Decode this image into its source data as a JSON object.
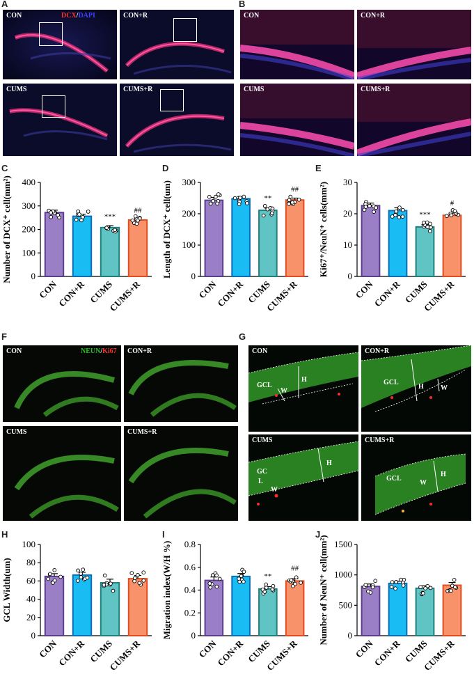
{
  "panel_letters": {
    "A": "A",
    "B": "B",
    "C": "C",
    "D": "D",
    "E": "E",
    "F": "F",
    "G": "G",
    "H": "H",
    "I": "I",
    "J": "J"
  },
  "groups": [
    "CON",
    "CON+R",
    "CUMS",
    "CUMS+R"
  ],
  "colors": {
    "CON": "#9b7fc6",
    "CON+R": "#19bdf4",
    "CUMS": "#5fc4c3",
    "CUMS+R": "#f8926a",
    "border_CON": "#5b3d8c",
    "border_CON+R": "#0a6fb5",
    "border_CUMS": "#20807c",
    "border_CUMS+R": "#e24c1e"
  },
  "legend_A": {
    "stain1": "DCX",
    "sep": "/",
    "stain2": "DAPI"
  },
  "legend_F": {
    "stain1": "NEUN",
    "sep": "/",
    "stain2": "Ki67"
  },
  "micro_labels": {
    "A": [
      "CON",
      "CON+R",
      "CUMS",
      "CUMS+R"
    ],
    "B": [
      "CON",
      "CON+R",
      "CUMS",
      "CUMS+R"
    ],
    "F": [
      "CON",
      "CON+R",
      "CUMS",
      "CUMS+R"
    ],
    "G": [
      "CON",
      "CON+R",
      "CUMS",
      "CUMS+R"
    ]
  },
  "g_annotations": {
    "gcl": "GCL",
    "gcl_split_1": "GC",
    "gcl_split_2": "L",
    "w": "W",
    "h": "H"
  },
  "chart_data": [
    {
      "id": "C",
      "type": "bar",
      "ylabel": "Number of DCX⁺ cell(mm²)",
      "ylim": [
        0,
        400
      ],
      "yticks": [
        0,
        100,
        200,
        300,
        400
      ],
      "categories": [
        "CON",
        "CON+R",
        "CUMS",
        "CUMS+R"
      ],
      "values": [
        272,
        256,
        208,
        240
      ],
      "errors": [
        10,
        9,
        8,
        7
      ],
      "significance": [
        "",
        "",
        "***",
        "##"
      ]
    },
    {
      "id": "D",
      "type": "bar",
      "ylabel": "Length of DCX⁺ cell(um)",
      "ylim": [
        0,
        300
      ],
      "yticks": [
        0,
        100,
        200,
        300
      ],
      "categories": [
        "CON",
        "CON+R",
        "CUMS",
        "CUMS+R"
      ],
      "values": [
        243,
        248,
        211,
        244
      ],
      "errors": [
        9,
        7,
        7,
        6
      ],
      "significance": [
        "",
        "",
        "**",
        "##"
      ]
    },
    {
      "id": "E",
      "type": "bar",
      "ylabel": "Ki67⁺/NeuN⁺ cells(mm²)",
      "ylim": [
        0,
        30
      ],
      "yticks": [
        0,
        10,
        20,
        30
      ],
      "categories": [
        "CON",
        "CON+R",
        "CUMS",
        "CUMS+R"
      ],
      "values": [
        22.6,
        21.0,
        15.8,
        19.5
      ],
      "errors": [
        0.8,
        0.9,
        0.7,
        0.7
      ],
      "significance": [
        "",
        "",
        "***",
        "#"
      ]
    },
    {
      "id": "H",
      "type": "bar",
      "ylabel": "GCL Width(um)",
      "ylim": [
        0,
        100
      ],
      "yticks": [
        0,
        20,
        40,
        60,
        80,
        100
      ],
      "categories": [
        "CON",
        "CON+R",
        "CUMS",
        "CUMS+R"
      ],
      "values": [
        65,
        66.5,
        58,
        62.5
      ],
      "errors": [
        3,
        3,
        4,
        3.5
      ],
      "significance": [
        "",
        "",
        "",
        ""
      ]
    },
    {
      "id": "I",
      "type": "bar",
      "ylabel": "Migration index(W/H %)",
      "ylim": [
        0,
        0.8
      ],
      "yticks": [
        0,
        0.2,
        0.4,
        0.6,
        0.8
      ],
      "categories": [
        "CON",
        "CON+R",
        "CUMS",
        "CUMS+R"
      ],
      "values": [
        0.485,
        0.52,
        0.41,
        0.48
      ],
      "errors": [
        0.03,
        0.025,
        0.02,
        0.02
      ],
      "significance": [
        "",
        "",
        "**",
        "##"
      ]
    },
    {
      "id": "J",
      "type": "bar",
      "ylabel": "Number of NeuN⁺ cell(mm²)",
      "ylim": [
        0,
        1500
      ],
      "yticks": [
        0,
        500,
        1000,
        1500
      ],
      "categories": [
        "CON",
        "CON+R",
        "CUMS",
        "CUMS+R"
      ],
      "values": [
        810,
        860,
        780,
        830
      ],
      "errors": [
        40,
        35,
        40,
        45
      ],
      "significance": [
        "",
        "",
        "",
        ""
      ]
    }
  ]
}
